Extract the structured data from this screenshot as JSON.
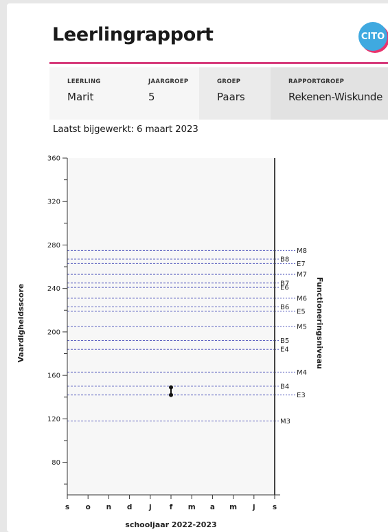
{
  "report": {
    "title": "Leerlingrapport",
    "logo_text": "CITO",
    "fields": [
      {
        "label": "LEERLING",
        "value": "Marit"
      },
      {
        "label": "JAARGROEP",
        "value": "5"
      },
      {
        "label": "GROEP",
        "value": "Paars"
      },
      {
        "label": "RAPPORTGROEP",
        "value": "Rekenen-Wiskunde"
      }
    ],
    "updated": "Laatst bijgewerkt: 6 maart 2023"
  },
  "colors": {
    "accent_rule": "#d63a7a",
    "logo_blue": "#3fa9e0",
    "logo_pink": "#e8336d",
    "reference_lines": "#5a5fbf",
    "plot_bg": "#f7f7f7"
  },
  "chart_data": {
    "type": "scatter",
    "title": "",
    "ylabel": "Vaardigheidsscore",
    "xlabel": "schooljaar 2022-2023",
    "right_axis_label": "Functioneringsniveau",
    "ylim": [
      50,
      360
    ],
    "y_ticks": [
      80,
      120,
      160,
      200,
      240,
      280,
      320,
      360
    ],
    "x_categories": [
      "s",
      "o",
      "n",
      "d",
      "j",
      "f",
      "m",
      "a",
      "m",
      "j",
      "s"
    ],
    "grid": false,
    "reference_levels": [
      {
        "label": "M8",
        "value": 275
      },
      {
        "label": "B8",
        "value": 267
      },
      {
        "label": "E7",
        "value": 263
      },
      {
        "label": "M7",
        "value": 253
      },
      {
        "label": "B7",
        "value": 245
      },
      {
        "label": "E6",
        "value": 241
      },
      {
        "label": "M6",
        "value": 231
      },
      {
        "label": "B6",
        "value": 223
      },
      {
        "label": "E5",
        "value": 219
      },
      {
        "label": "M5",
        "value": 205
      },
      {
        "label": "B5",
        "value": 192
      },
      {
        "label": "E4",
        "value": 184
      },
      {
        "label": "M4",
        "value": 163
      },
      {
        "label": "B4",
        "value": 150
      },
      {
        "label": "E3",
        "value": 142
      },
      {
        "label": "M3",
        "value": 118
      }
    ],
    "measurements": [
      {
        "x": "f",
        "score_low": 142,
        "score_high": 149
      }
    ]
  }
}
